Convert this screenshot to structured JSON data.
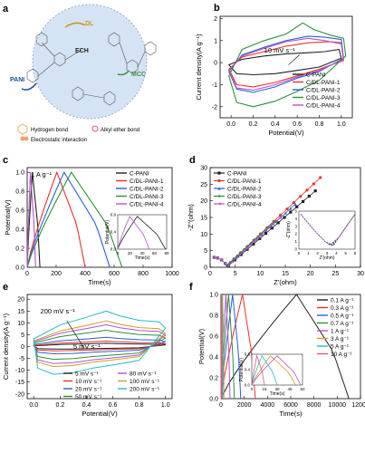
{
  "figure": {
    "panel_a": {
      "letter": "a",
      "labels": {
        "dl": "DL",
        "ech": "ECH",
        "pani": "PANI",
        "mcc": "MCC"
      },
      "legend": [
        "Hydrogen bond",
        "Alkyl ether bond",
        "Electrostatic interaction"
      ],
      "colors": {
        "dl": "#c49a1a",
        "ech": "#222222",
        "pani": "#1a4f9a",
        "mcc": "#3d8f3d",
        "hbond": "#e0b35a",
        "ether": "#d052b5",
        "electro": "#f0a36a",
        "bg": "#d5e4f4"
      }
    }
  },
  "chart_data": [
    {
      "panel": "b",
      "type": "line",
      "xlabel": "Potential(V)",
      "ylabel": "Current density(A g⁻¹)",
      "xlim": [
        -0.1,
        1.1
      ],
      "ylim": [
        -2.5,
        2.1
      ],
      "xticks": [
        "0.0",
        "0.2",
        "0.4",
        "0.6",
        "0.8",
        "1.0"
      ],
      "xtick_values": [
        0,
        0.2,
        0.4,
        0.6,
        0.8,
        1.0
      ],
      "yticks": [
        "-2",
        "-1",
        "0",
        "1",
        "2"
      ],
      "ytick_values": [
        -2,
        -1,
        0,
        1,
        2
      ],
      "annotation": "10 mV s⁻¹",
      "legend_position": "bottom-right",
      "series": [
        {
          "name": "C-PANI",
          "color": "#222222",
          "upper": [
            [
              -0.02,
              -0.1
            ],
            [
              0.1,
              0.15
            ],
            [
              0.3,
              0.3
            ],
            [
              0.5,
              0.4
            ],
            [
              0.7,
              0.45
            ],
            [
              0.85,
              0.5
            ],
            [
              0.98,
              0.6
            ],
            [
              1.0,
              0.2
            ]
          ],
          "lower": [
            [
              -0.02,
              -0.1
            ],
            [
              0.05,
              -0.5
            ],
            [
              0.2,
              -0.55
            ],
            [
              0.4,
              -0.5
            ],
            [
              0.6,
              -0.35
            ],
            [
              0.8,
              -0.2
            ],
            [
              1.0,
              0.2
            ]
          ]
        },
        {
          "name": "C/DL-PANI-1",
          "color": "#e8322c",
          "upper": [
            [
              -0.02,
              -0.3
            ],
            [
              0.1,
              0.25
            ],
            [
              0.3,
              0.5
            ],
            [
              0.5,
              0.75
            ],
            [
              0.7,
              0.9
            ],
            [
              0.9,
              0.95
            ],
            [
              1.0,
              0.9
            ],
            [
              1.02,
              0.1
            ]
          ],
          "lower": [
            [
              -0.02,
              -0.3
            ],
            [
              0.05,
              -1.0
            ],
            [
              0.2,
              -1.1
            ],
            [
              0.4,
              -0.9
            ],
            [
              0.6,
              -0.6
            ],
            [
              0.8,
              -0.3
            ],
            [
              1.02,
              0.1
            ]
          ]
        },
        {
          "name": "C/DL-PANI-2",
          "color": "#2a5fd6",
          "upper": [
            [
              -0.02,
              -0.4
            ],
            [
              0.1,
              0.35
            ],
            [
              0.3,
              0.7
            ],
            [
              0.5,
              1.0
            ],
            [
              0.7,
              1.2
            ],
            [
              0.85,
              1.15
            ],
            [
              1.0,
              1.05
            ],
            [
              1.02,
              0.2
            ]
          ],
          "lower": [
            [
              -0.02,
              -0.4
            ],
            [
              0.05,
              -1.2
            ],
            [
              0.2,
              -1.35
            ],
            [
              0.4,
              -1.1
            ],
            [
              0.6,
              -0.7
            ],
            [
              0.8,
              -0.4
            ],
            [
              1.02,
              0.2
            ]
          ]
        },
        {
          "name": "C/DL-PANI-3",
          "color": "#2f8f3a",
          "upper": [
            [
              -0.02,
              -0.6
            ],
            [
              0.1,
              0.6
            ],
            [
              0.3,
              1.0
            ],
            [
              0.5,
              1.3
            ],
            [
              0.65,
              1.8
            ],
            [
              0.75,
              1.5
            ],
            [
              0.9,
              1.25
            ],
            [
              1.02,
              1.1
            ],
            [
              1.04,
              0.3
            ]
          ],
          "lower": [
            [
              -0.02,
              -0.6
            ],
            [
              0.05,
              -1.8
            ],
            [
              0.2,
              -2.0
            ],
            [
              0.4,
              -1.75
            ],
            [
              0.6,
              -1.3
            ],
            [
              0.8,
              -0.8
            ],
            [
              1.04,
              0.3
            ]
          ]
        },
        {
          "name": "C/DL-PANI-4",
          "color": "#b352c9",
          "upper": [
            [
              -0.02,
              -0.35
            ],
            [
              0.1,
              0.3
            ],
            [
              0.3,
              0.65
            ],
            [
              0.5,
              0.95
            ],
            [
              0.7,
              1.1
            ],
            [
              0.85,
              1.0
            ],
            [
              1.0,
              0.85
            ],
            [
              1.02,
              0.15
            ]
          ],
          "lower": [
            [
              -0.02,
              -0.35
            ],
            [
              0.05,
              -1.15
            ],
            [
              0.2,
              -1.25
            ],
            [
              0.4,
              -1.0
            ],
            [
              0.6,
              -0.65
            ],
            [
              0.8,
              -0.35
            ],
            [
              1.02,
              0.15
            ]
          ]
        }
      ]
    },
    {
      "panel": "c",
      "type": "line",
      "xlabel": "Time(s)",
      "ylabel": "Potential(V)",
      "xlim": [
        0,
        1000
      ],
      "ylim": [
        0,
        1.05
      ],
      "xticks": [
        "0",
        "200",
        "400",
        "600",
        "800",
        "1000"
      ],
      "xtick_values": [
        0,
        200,
        400,
        600,
        800,
        1000
      ],
      "yticks": [
        "0.0",
        "0.2",
        "0.4",
        "0.6",
        "0.8",
        "1.0"
      ],
      "ytick_values": [
        0,
        0.2,
        0.4,
        0.6,
        0.8,
        1.0
      ],
      "annotation": "1 A g⁻¹",
      "legend_position": "top-right",
      "series": [
        {
          "name": "C-PANI",
          "color": "#222222",
          "charge_end": 36,
          "discharge_end": 88
        },
        {
          "name": "C/DL-PANI-1",
          "color": "#e8322c",
          "charge_end": 205,
          "discharge_end": 400
        },
        {
          "name": "C/DL-PANI-2",
          "color": "#2a5fd6",
          "charge_end": 255,
          "discharge_end": 570
        },
        {
          "name": "C/DL-PANI-3",
          "color": "#2f8f3a",
          "charge_end": 305,
          "discharge_end": 655
        },
        {
          "name": "C/DL-PANI-4",
          "color": "#b352c9",
          "charge_end": 22,
          "discharge_end": 58
        }
      ],
      "inset": {
        "xlabel": "Time(s)",
        "ylabel": "Potential(V)",
        "xticks": [
          "0",
          "20",
          "40",
          "60",
          "80"
        ],
        "yticks": [
          "0.0",
          "0.4",
          "0.8"
        ],
        "xlim": [
          0,
          90
        ],
        "ylim": [
          0,
          1.0
        ]
      }
    },
    {
      "panel": "d",
      "type": "scatter",
      "xlabel": "Z'(ohm)",
      "ylabel": "-Z''(ohm)",
      "xlim": [
        0,
        30
      ],
      "ylim": [
        0,
        30
      ],
      "xticks": [
        "0",
        "5",
        "10",
        "15",
        "20",
        "25",
        "30"
      ],
      "xtick_values": [
        0,
        5,
        10,
        15,
        20,
        25,
        30
      ],
      "yticks": [
        "0",
        "5",
        "10",
        "15",
        "20",
        "25",
        "30"
      ],
      "ytick_values": [
        0,
        5,
        10,
        15,
        20,
        25,
        30
      ],
      "legend_position": "top-left",
      "series": [
        {
          "name": "C-PANI",
          "color": "#222222",
          "marker": "square",
          "knee": 3.7,
          "end": [
            21,
            23
          ]
        },
        {
          "name": "C/DL-PANI-1",
          "color": "#e8322c",
          "marker": "circle",
          "knee": 3.4,
          "end": [
            22,
            27
          ]
        },
        {
          "name": "C/DL-PANI-2",
          "color": "#2a5fd6",
          "marker": "triangle",
          "knee": 3.5,
          "end": [
            17,
            19
          ]
        },
        {
          "name": "C/DL-PANI-3",
          "color": "#2f8f3a",
          "marker": "diamond",
          "knee": 3.3,
          "end": [
            13,
            14
          ]
        },
        {
          "name": "C/DL-PANI-4",
          "color": "#b352c9",
          "marker": "triangle-left",
          "knee": 3.6,
          "end": [
            14,
            15
          ]
        }
      ],
      "inset": {
        "xlabel": "Z'(ohm)",
        "ylabel": "-Z''(ohm)",
        "xticks": [
          "0",
          "1",
          "2",
          "3",
          "4",
          "5",
          "6"
        ],
        "yticks": [
          "0",
          "1",
          "2",
          "3",
          "4",
          "5"
        ],
        "xlim": [
          0,
          6
        ],
        "ylim": [
          0,
          5
        ]
      }
    },
    {
      "panel": "e",
      "type": "line",
      "xlabel": "Potential(V)",
      "ylabel": "Current density(A g⁻¹)",
      "xlim": [
        -0.05,
        1.05
      ],
      "ylim": [
        -22,
        22
      ],
      "xticks": [
        "0.0",
        "0.2",
        "0.4",
        "0.6",
        "0.8",
        "1.0"
      ],
      "xtick_values": [
        0,
        0.2,
        0.4,
        0.6,
        0.8,
        1.0
      ],
      "yticks": [
        "-20",
        "-15",
        "-10",
        "-5",
        "0",
        "5",
        "10",
        "15",
        "20"
      ],
      "ytick_values": [
        -20,
        -15,
        -10,
        -5,
        0,
        5,
        10,
        15,
        20
      ],
      "annotations": [
        "200 mV s⁻¹",
        "5 mV s⁻¹"
      ],
      "legend_position": "bottom-right",
      "series": [
        {
          "name": "5 mV s⁻¹",
          "color": "#222222",
          "scale": 0.6
        },
        {
          "name": "10 mV s⁻¹",
          "color": "#e8322c",
          "scale": 1.0
        },
        {
          "name": "20 mV s⁻¹",
          "color": "#2a5fd6",
          "scale": 1.7
        },
        {
          "name": "50 mV s⁻¹",
          "color": "#2f8f3a",
          "scale": 3.0
        },
        {
          "name": "80 mV s⁻¹",
          "color": "#b352c9",
          "scale": 4.0
        },
        {
          "name": "100 mV s⁻¹",
          "color": "#c8a02a",
          "scale": 4.7
        },
        {
          "name": "200 mV s⁻¹",
          "color": "#28b8c8",
          "scale": 6.5
        }
      ]
    },
    {
      "panel": "f",
      "type": "line",
      "xlabel": "Time(s)",
      "ylabel": "Potential(V)",
      "xlim": [
        0,
        12000
      ],
      "ylim": [
        0,
        1.0
      ],
      "xticks": [
        "0",
        "2000",
        "4000",
        "6000",
        "8000",
        "10000",
        "12000"
      ],
      "xtick_values": [
        0,
        2000,
        4000,
        6000,
        8000,
        10000,
        12000
      ],
      "yticks": [
        "0.0",
        "0.2",
        "0.4",
        "0.6",
        "0.8",
        "1.0"
      ],
      "ytick_values": [
        0,
        0.2,
        0.4,
        0.6,
        0.8,
        1.0
      ],
      "legend_position": "top-right",
      "series": [
        {
          "name": "0.1 A g⁻¹",
          "color": "#222222",
          "charge_end": 6500,
          "discharge_end": 11000
        },
        {
          "name": "0.3 A g⁻¹",
          "color": "#e8322c",
          "charge_end": 1850,
          "discharge_end": 2950
        },
        {
          "name": "0.5 A g⁻¹",
          "color": "#2a5fd6",
          "charge_end": 1000,
          "discharge_end": 1700
        },
        {
          "name": "0.7 A g⁻¹",
          "color": "#2f8f3a",
          "charge_end": 650,
          "discharge_end": 1150
        },
        {
          "name": "1 A g⁻¹",
          "color": "#b352c9",
          "charge_end": 420,
          "discharge_end": 780
        },
        {
          "name": "3 A g⁻¹",
          "color": "#c8a02a",
          "charge_end": 140,
          "discharge_end": 260
        },
        {
          "name": "5 A g⁻¹",
          "color": "#28b8c8",
          "charge_end": 80,
          "discharge_end": 150
        },
        {
          "name": "10 A g⁻¹",
          "color": "#d65a82",
          "charge_end": 40,
          "discharge_end": 75
        }
      ],
      "inset": {
        "xlabel": "Time(s)",
        "ylabel": "Potential(V)",
        "xticks": [
          "0",
          "15",
          "30",
          "45",
          "60"
        ],
        "yticks": [
          "0.0",
          "0.4",
          "0.8"
        ],
        "xlim": [
          0,
          60
        ],
        "ylim": [
          0,
          1.0
        ]
      }
    }
  ]
}
